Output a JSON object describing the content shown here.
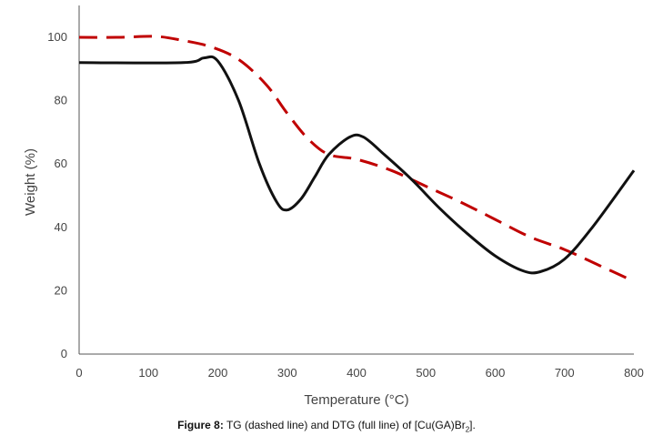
{
  "chart_data": {
    "type": "line",
    "xlabel": "Temperature (°C)",
    "ylabel": "Weight (%)",
    "xlim": [
      0,
      800
    ],
    "ylim": [
      0,
      110
    ],
    "x_ticks": [
      0,
      100,
      200,
      300,
      400,
      500,
      600,
      700,
      800
    ],
    "y_ticks": [
      0,
      20,
      40,
      60,
      80,
      100
    ],
    "grid": false,
    "legend": "none",
    "series": [
      {
        "name": "TG",
        "style": "dashed",
        "color": "#c00000",
        "x": [
          0,
          60,
          110,
          150,
          190,
          230,
          270,
          300,
          330,
          360,
          400,
          450,
          500,
          550,
          600,
          650,
          700,
          750,
          800
        ],
        "y": [
          100,
          100,
          100.3,
          99,
          97,
          93,
          85,
          76,
          68,
          63,
          61.5,
          58,
          53,
          48,
          42.5,
          37,
          33,
          28,
          23
        ]
      },
      {
        "name": "DTG",
        "style": "solid",
        "color": "#111111",
        "x": [
          0,
          150,
          180,
          200,
          230,
          260,
          285,
          300,
          320,
          340,
          360,
          390,
          410,
          440,
          480,
          520,
          560,
          600,
          640,
          665,
          700,
          740,
          800
        ],
        "y": [
          92,
          92,
          93.5,
          92.5,
          80,
          60,
          48,
          45.5,
          49,
          56,
          63,
          68.5,
          68.5,
          63,
          55,
          46,
          38,
          31,
          26.3,
          26,
          30,
          40,
          58
        ]
      }
    ]
  },
  "caption": {
    "figure_label": "Figure 8:",
    "text_before": " TG (dashed line) and DTG (full line) of [Cu(GA)Br",
    "subscript": "2",
    "text_after": "]."
  }
}
